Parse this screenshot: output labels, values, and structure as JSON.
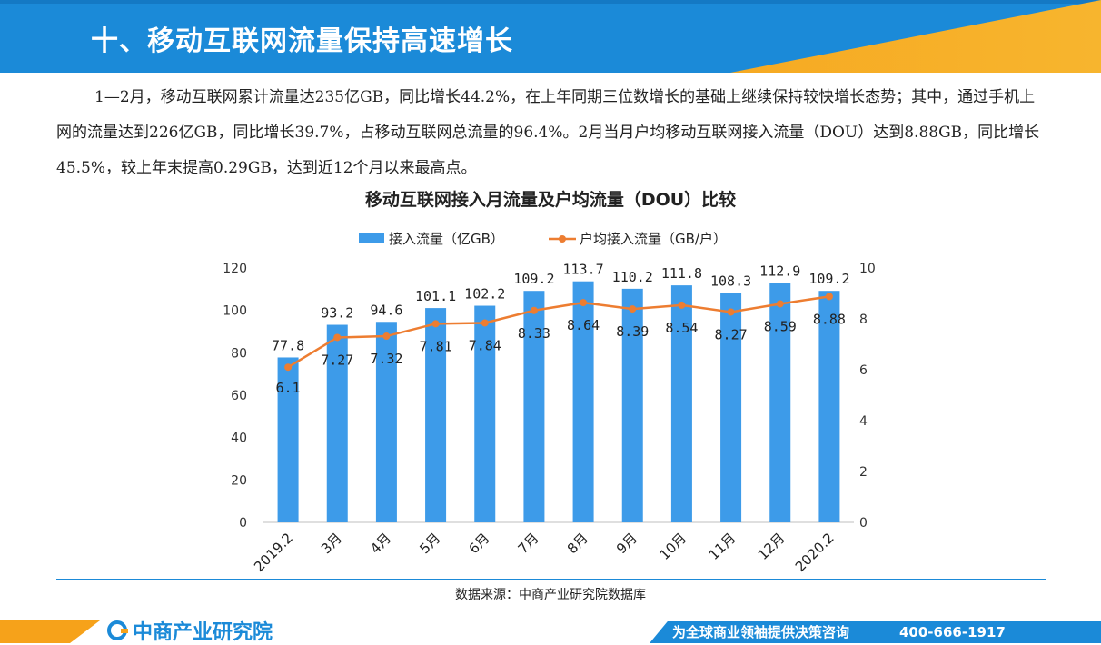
{
  "header": {
    "title": "十、移动互联网流量保持高速增长"
  },
  "paragraph": "1—2月，移动互联网累计流量达235亿GB，同比增长44.2%，在上年同期三位数增长的基础上继续保持较快增长态势；其中，通过手机上网的流量达到226亿GB，同比增长39.7%，占移动互联网总流量的96.4%。2月当月户均移动互联网接入流量（DOU）达到8.88GB，同比增长45.5%，较上年末提高0.29GB，达到近12个月以来最高点。",
  "source": "数据来源：中商产业研究院数据库",
  "footer": {
    "logo_text": "中商产业研究院",
    "slogan": "为全球商业领袖提供决策咨询",
    "phone": "400-666-1917"
  },
  "colors": {
    "header_blue": "#1b8ad8",
    "accent_orange": "#f6a21a",
    "bar_blue": "#3d9be9",
    "line_orange": "#ed7d31"
  },
  "chart_data": {
    "type": "bar",
    "title": "移动互联网接入月流量及户均流量（DOU）比较",
    "categories": [
      "2019.2",
      "3月",
      "4月",
      "5月",
      "6月",
      "7月",
      "8月",
      "9月",
      "10月",
      "11月",
      "12月",
      "2020.2"
    ],
    "series": [
      {
        "name": "接入流量（亿GB）",
        "type": "bar",
        "axis": "left",
        "values": [
          77.8,
          93.2,
          94.6,
          101.1,
          102.2,
          109.2,
          113.7,
          110.2,
          111.8,
          108.3,
          112.9,
          109.2
        ],
        "labels": [
          "77.8",
          "93.2",
          "94.6",
          "101.1",
          "102.2",
          "109.2",
          "113.7",
          "110.2",
          "111.8",
          "108.3",
          "112.9",
          "109.2"
        ]
      },
      {
        "name": "户均接入流量（GB/户）",
        "type": "line",
        "axis": "right",
        "values": [
          6.1,
          7.27,
          7.32,
          7.81,
          7.84,
          8.33,
          8.64,
          8.39,
          8.54,
          8.27,
          8.59,
          8.88
        ],
        "labels": [
          "6.1",
          "7.27",
          "7.32",
          "7.81",
          "7.84",
          "8.33",
          "8.64",
          "8.39",
          "8.54",
          "8.27",
          "8.59",
          "8.88"
        ]
      }
    ],
    "y_left": {
      "min": 0,
      "max": 120,
      "ticks": [
        "0",
        "20",
        "40",
        "60",
        "80",
        "100",
        "120"
      ]
    },
    "y_right": {
      "min": 0,
      "max": 10,
      "ticks": [
        "0",
        "2",
        "4",
        "6",
        "8",
        "10"
      ]
    },
    "legend_position": "top",
    "grid": false
  }
}
